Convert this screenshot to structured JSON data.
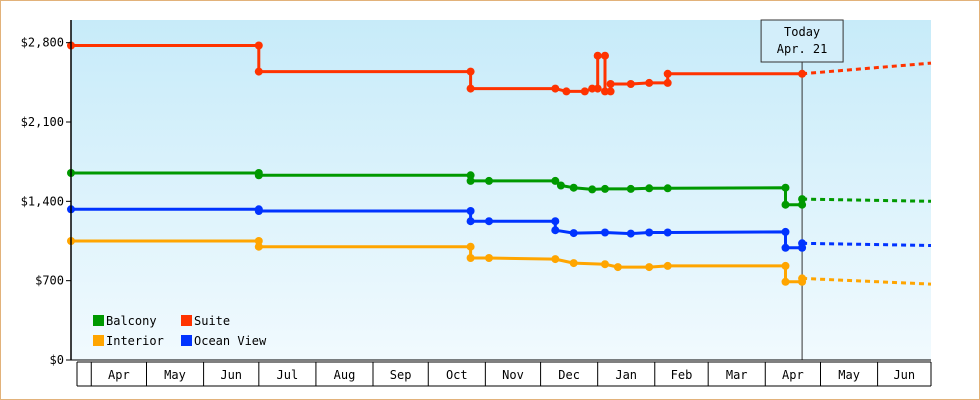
{
  "chart_data": {
    "type": "line",
    "title": "",
    "xlabel": "",
    "ylabel": "",
    "ylim": [
      0,
      3000
    ],
    "y_ticks": [
      0,
      700,
      1400,
      2100,
      2800
    ],
    "y_tick_labels": [
      "$0",
      "$700",
      "$1,400",
      "$2,100",
      "$2,800"
    ],
    "x_range": [
      "2015-03-21",
      "2016-06-30"
    ],
    "x_month_starts": [
      "2015-04-01",
      "2015-05-01",
      "2015-06-01",
      "2015-07-01",
      "2015-08-01",
      "2015-09-01",
      "2015-10-01",
      "2015-11-01",
      "2015-12-01",
      "2016-01-01",
      "2016-02-01",
      "2016-03-01",
      "2016-04-01",
      "2016-05-01",
      "2016-06-01",
      "2016-07-01"
    ],
    "x_tick_labels": [
      "Apr",
      "May",
      "Jun",
      "Jul",
      "Aug",
      "Sep",
      "Oct",
      "Nov",
      "Dec",
      "Jan",
      "Feb",
      "Mar",
      "Apr",
      "May",
      "Jun"
    ],
    "grid": false,
    "legend_position": "bottom-left",
    "today": {
      "date": "2016-04-21",
      "label_line1": "Today",
      "label_line2": "Apr. 21"
    },
    "series": [
      {
        "name": "Suite",
        "color": "#ff3300",
        "points": [
          [
            "2015-03-21",
            2775
          ],
          [
            "2015-07-01",
            2775
          ],
          [
            "2015-07-01",
            2545
          ],
          [
            "2015-10-24",
            2545
          ],
          [
            "2015-10-24",
            2395
          ],
          [
            "2015-12-09",
            2395
          ],
          [
            "2015-12-15",
            2370
          ],
          [
            "2015-12-25",
            2370
          ],
          [
            "2015-12-29",
            2395
          ],
          [
            "2016-01-01",
            2395
          ],
          [
            "2016-01-01",
            2685
          ],
          [
            "2016-01-05",
            2685
          ],
          [
            "2016-01-05",
            2370
          ],
          [
            "2016-01-08",
            2370
          ],
          [
            "2016-01-08",
            2435
          ],
          [
            "2016-01-19",
            2435
          ],
          [
            "2016-01-29",
            2445
          ],
          [
            "2016-02-08",
            2445
          ],
          [
            "2016-02-08",
            2525
          ],
          [
            "2016-04-21",
            2525
          ]
        ],
        "projection": [
          [
            "2016-04-21",
            2525
          ],
          [
            "2016-06-30",
            2620
          ]
        ]
      },
      {
        "name": "Balcony",
        "color": "#009900",
        "points": [
          [
            "2015-03-21",
            1650
          ],
          [
            "2015-07-01",
            1650
          ],
          [
            "2015-07-01",
            1630
          ],
          [
            "2015-10-24",
            1630
          ],
          [
            "2015-10-24",
            1580
          ],
          [
            "2015-11-03",
            1580
          ],
          [
            "2015-12-09",
            1580
          ],
          [
            "2015-12-12",
            1540
          ],
          [
            "2015-12-19",
            1520
          ],
          [
            "2015-12-29",
            1505
          ],
          [
            "2016-01-05",
            1510
          ],
          [
            "2016-01-19",
            1510
          ],
          [
            "2016-01-29",
            1515
          ],
          [
            "2016-02-08",
            1515
          ],
          [
            "2016-04-12",
            1520
          ],
          [
            "2016-04-12",
            1370
          ],
          [
            "2016-04-21",
            1370
          ],
          [
            "2016-04-21",
            1420
          ]
        ],
        "projection": [
          [
            "2016-04-21",
            1420
          ],
          [
            "2016-06-30",
            1400
          ]
        ]
      },
      {
        "name": "Ocean View",
        "color": "#0033ff",
        "points": [
          [
            "2015-03-21",
            1330
          ],
          [
            "2015-07-01",
            1330
          ],
          [
            "2015-07-01",
            1315
          ],
          [
            "2015-10-24",
            1315
          ],
          [
            "2015-10-24",
            1225
          ],
          [
            "2015-11-03",
            1225
          ],
          [
            "2015-12-09",
            1225
          ],
          [
            "2015-12-09",
            1145
          ],
          [
            "2015-12-19",
            1120
          ],
          [
            "2016-01-05",
            1125
          ],
          [
            "2016-01-19",
            1115
          ],
          [
            "2016-01-29",
            1125
          ],
          [
            "2016-02-08",
            1125
          ],
          [
            "2016-04-12",
            1130
          ],
          [
            "2016-04-12",
            990
          ],
          [
            "2016-04-21",
            990
          ],
          [
            "2016-04-21",
            1030
          ]
        ],
        "projection": [
          [
            "2016-04-21",
            1030
          ],
          [
            "2016-06-30",
            1010
          ]
        ]
      },
      {
        "name": "Interior",
        "color": "#ffa500",
        "points": [
          [
            "2015-03-21",
            1050
          ],
          [
            "2015-07-01",
            1050
          ],
          [
            "2015-07-01",
            1000
          ],
          [
            "2015-10-24",
            1000
          ],
          [
            "2015-10-24",
            900
          ],
          [
            "2015-11-03",
            900
          ],
          [
            "2015-12-09",
            890
          ],
          [
            "2015-12-19",
            855
          ],
          [
            "2016-01-05",
            845
          ],
          [
            "2016-01-12",
            820
          ],
          [
            "2016-01-29",
            820
          ],
          [
            "2016-02-08",
            830
          ],
          [
            "2016-04-12",
            830
          ],
          [
            "2016-04-12",
            690
          ],
          [
            "2016-04-21",
            690
          ],
          [
            "2016-04-21",
            720
          ]
        ],
        "projection": [
          [
            "2016-04-21",
            720
          ],
          [
            "2016-06-30",
            670
          ]
        ]
      }
    ],
    "legend": [
      {
        "name": "Balcony",
        "color": "#009900"
      },
      {
        "name": "Suite",
        "color": "#ff3300"
      },
      {
        "name": "Interior",
        "color": "#ffa500"
      },
      {
        "name": "Ocean View",
        "color": "#0033ff"
      }
    ]
  }
}
